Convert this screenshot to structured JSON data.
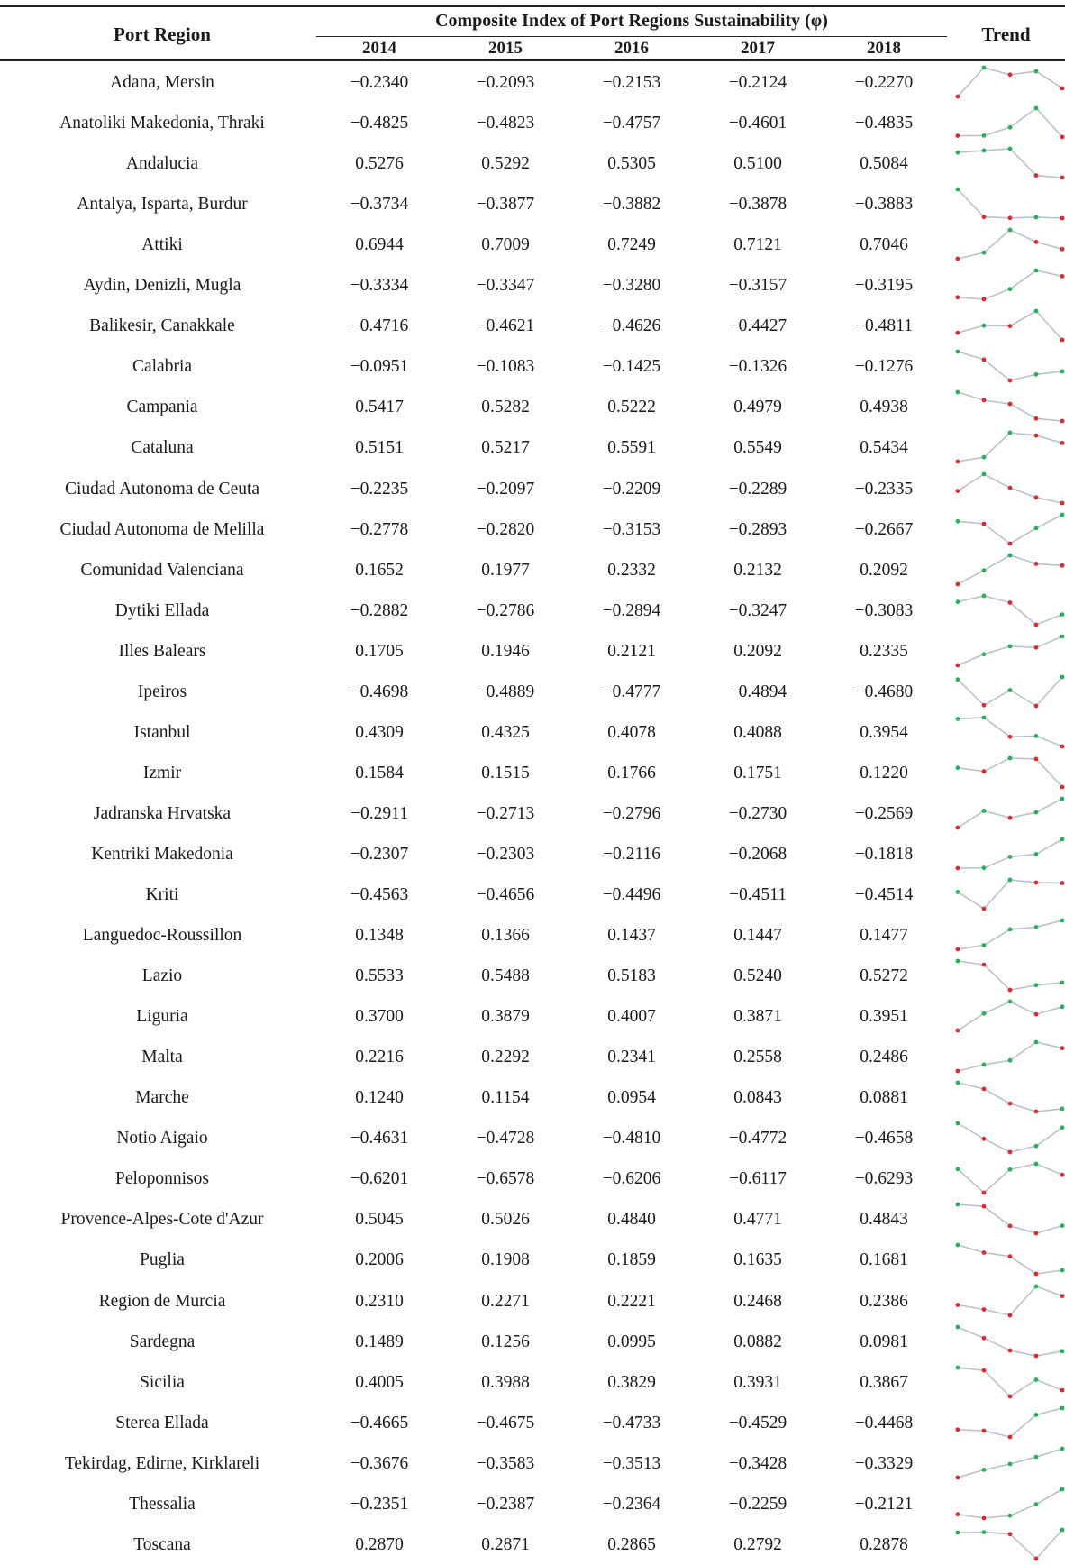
{
  "header": {
    "port_region": "Port Region",
    "composite_index": "Composite Index of Port Regions Sustainability (φ)",
    "trend": "Trend",
    "years": [
      "2014",
      "2015",
      "2016",
      "2017",
      "2018"
    ]
  },
  "colors": {
    "max_marker": "#22b35a",
    "min_marker": "#e6262b",
    "trend_line": "#b8c2cc"
  },
  "rows": [
    {
      "region": "Adana, Mersin",
      "values": [
        "−0.2340",
        "−0.2093",
        "−0.2153",
        "−0.2124",
        "−0.2270"
      ]
    },
    {
      "region": "Anatoliki Makedonia, Thraki",
      "values": [
        "−0.4825",
        "−0.4823",
        "−0.4757",
        "−0.4601",
        "−0.4835"
      ]
    },
    {
      "region": "Andalucia",
      "values": [
        "0.5276",
        "0.5292",
        "0.5305",
        "0.5100",
        "0.5084"
      ]
    },
    {
      "region": "Antalya, Isparta, Burdur",
      "values": [
        "−0.3734",
        "−0.3877",
        "−0.3882",
        "−0.3878",
        "−0.3883"
      ]
    },
    {
      "region": "Attiki",
      "values": [
        "0.6944",
        "0.7009",
        "0.7249",
        "0.7121",
        "0.7046"
      ]
    },
    {
      "region": "Aydin, Denizli, Mugla",
      "values": [
        "−0.3334",
        "−0.3347",
        "−0.3280",
        "−0.3157",
        "−0.3195"
      ]
    },
    {
      "region": "Balikesir, Canakkale",
      "values": [
        "−0.4716",
        "−0.4621",
        "−0.4626",
        "−0.4427",
        "−0.4811"
      ]
    },
    {
      "region": "Calabria",
      "values": [
        "−0.0951",
        "−0.1083",
        "−0.1425",
        "−0.1326",
        "−0.1276"
      ]
    },
    {
      "region": "Campania",
      "values": [
        "0.5417",
        "0.5282",
        "0.5222",
        "0.4979",
        "0.4938"
      ]
    },
    {
      "region": "Cataluna",
      "values": [
        "0.5151",
        "0.5217",
        "0.5591",
        "0.5549",
        "0.5434"
      ]
    },
    {
      "region": "Ciudad Autonoma de Ceuta",
      "values": [
        "−0.2235",
        "−0.2097",
        "−0.2209",
        "−0.2289",
        "−0.2335"
      ]
    },
    {
      "region": "Ciudad Autonoma de Melilla",
      "values": [
        "−0.2778",
        "−0.2820",
        "−0.3153",
        "−0.2893",
        "−0.2667"
      ]
    },
    {
      "region": "Comunidad Valenciana",
      "values": [
        "0.1652",
        "0.1977",
        "0.2332",
        "0.2132",
        "0.2092"
      ]
    },
    {
      "region": "Dytiki Ellada",
      "values": [
        "−0.2882",
        "−0.2786",
        "−0.2894",
        "−0.3247",
        "−0.3083"
      ]
    },
    {
      "region": "Illes Balears",
      "values": [
        "0.1705",
        "0.1946",
        "0.2121",
        "0.2092",
        "0.2335"
      ]
    },
    {
      "region": "Ipeiros",
      "values": [
        "−0.4698",
        "−0.4889",
        "−0.4777",
        "−0.4894",
        "−0.4680"
      ]
    },
    {
      "region": "Istanbul",
      "values": [
        "0.4309",
        "0.4325",
        "0.4078",
        "0.4088",
        "0.3954"
      ]
    },
    {
      "region": "Izmir",
      "values": [
        "0.1584",
        "0.1515",
        "0.1766",
        "0.1751",
        "0.1220"
      ]
    },
    {
      "region": "Jadranska Hrvatska",
      "values": [
        "−0.2911",
        "−0.2713",
        "−0.2796",
        "−0.2730",
        "−0.2569"
      ]
    },
    {
      "region": "Kentriki Makedonia",
      "values": [
        "−0.2307",
        "−0.2303",
        "−0.2116",
        "−0.2068",
        "−0.1818"
      ]
    },
    {
      "region": "Kriti",
      "values": [
        "−0.4563",
        "−0.4656",
        "−0.4496",
        "−0.4511",
        "−0.4514"
      ]
    },
    {
      "region": "Languedoc-Roussillon",
      "values": [
        "0.1348",
        "0.1366",
        "0.1437",
        "0.1447",
        "0.1477"
      ]
    },
    {
      "region": "Lazio",
      "values": [
        "0.5533",
        "0.5488",
        "0.5183",
        "0.5240",
        "0.5272"
      ]
    },
    {
      "region": "Liguria",
      "values": [
        "0.3700",
        "0.3879",
        "0.4007",
        "0.3871",
        "0.3951"
      ]
    },
    {
      "region": "Malta",
      "values": [
        "0.2216",
        "0.2292",
        "0.2341",
        "0.2558",
        "0.2486"
      ]
    },
    {
      "region": "Marche",
      "values": [
        "0.1240",
        "0.1154",
        "0.0954",
        "0.0843",
        "0.0881"
      ]
    },
    {
      "region": "Notio Aigaio",
      "values": [
        "−0.4631",
        "−0.4728",
        "−0.4810",
        "−0.4772",
        "−0.4658"
      ]
    },
    {
      "region": "Peloponnisos",
      "values": [
        "−0.6201",
        "−0.6578",
        "−0.6206",
        "−0.6117",
        "−0.6293"
      ]
    },
    {
      "region": "Provence-Alpes-Cote d'Azur",
      "values": [
        "0.5045",
        "0.5026",
        "0.4840",
        "0.4771",
        "0.4843"
      ]
    },
    {
      "region": "Puglia",
      "values": [
        "0.2006",
        "0.1908",
        "0.1859",
        "0.1635",
        "0.1681"
      ]
    },
    {
      "region": "Region de Murcia",
      "values": [
        "0.2310",
        "0.2271",
        "0.2221",
        "0.2468",
        "0.2386"
      ]
    },
    {
      "region": "Sardegna",
      "values": [
        "0.1489",
        "0.1256",
        "0.0995",
        "0.0882",
        "0.0981"
      ]
    },
    {
      "region": "Sicilia",
      "values": [
        "0.4005",
        "0.3988",
        "0.3829",
        "0.3931",
        "0.3867"
      ]
    },
    {
      "region": "Sterea Ellada",
      "values": [
        "−0.4665",
        "−0.4675",
        "−0.4733",
        "−0.4529",
        "−0.4468"
      ]
    },
    {
      "region": "Tekirdag, Edirne, Kirklareli",
      "values": [
        "−0.3676",
        "−0.3583",
        "−0.3513",
        "−0.3428",
        "−0.3329"
      ]
    },
    {
      "region": "Thessalia",
      "values": [
        "−0.2351",
        "−0.2387",
        "−0.2364",
        "−0.2259",
        "−0.2121"
      ]
    },
    {
      "region": "Toscana",
      "values": [
        "0.2870",
        "0.2871",
        "0.2865",
        "0.2792",
        "0.2878"
      ]
    }
  ]
}
